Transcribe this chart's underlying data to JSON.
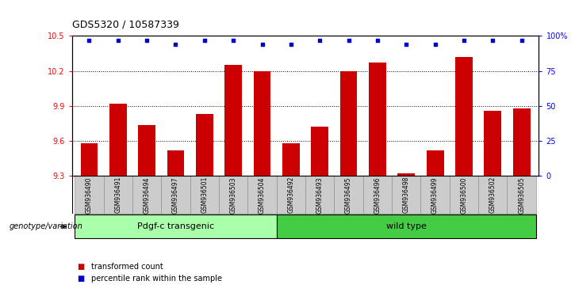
{
  "title": "GDS5320 / 10587339",
  "categories": [
    "GSM936490",
    "GSM936491",
    "GSM936494",
    "GSM936497",
    "GSM936501",
    "GSM936503",
    "GSM936504",
    "GSM936492",
    "GSM936493",
    "GSM936495",
    "GSM936496",
    "GSM936498",
    "GSM936499",
    "GSM936500",
    "GSM936502",
    "GSM936505"
  ],
  "bar_values": [
    9.58,
    9.92,
    9.74,
    9.52,
    9.83,
    10.25,
    10.2,
    9.58,
    9.72,
    10.2,
    10.27,
    9.32,
    9.52,
    10.32,
    9.86,
    9.88
  ],
  "dot_values": [
    97,
    97,
    97,
    94,
    97,
    97,
    94,
    94,
    97,
    97,
    97,
    94,
    94,
    97,
    97,
    97
  ],
  "ylim_left": [
    9.3,
    10.5
  ],
  "ylim_right": [
    0,
    100
  ],
  "yticks_left": [
    9.3,
    9.6,
    9.9,
    10.2,
    10.5
  ],
  "yticks_right": [
    0,
    25,
    50,
    75,
    100
  ],
  "ytick_labels_right": [
    "0",
    "25",
    "50",
    "75",
    "100%"
  ],
  "bar_color": "#cc0000",
  "dot_color": "#0000cc",
  "group1_label": "Pdgf-c transgenic",
  "group2_label": "wild type",
  "group1_color": "#aaffaa",
  "group2_color": "#44cc44",
  "group1_count": 7,
  "group2_count": 9,
  "xlabel_left": "genotype/variation",
  "legend_bar": "transformed count",
  "legend_dot": "percentile rank within the sample",
  "tick_bg_color": "#cccccc",
  "grid_style": "dotted"
}
